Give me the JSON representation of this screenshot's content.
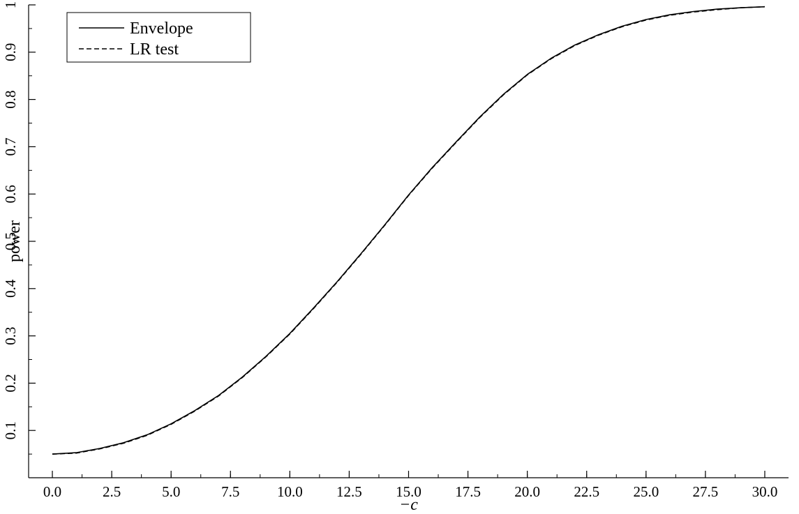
{
  "chart_data": {
    "type": "line",
    "title": "",
    "xlabel": "−c",
    "ylabel": "power",
    "xlim": [
      -1,
      31
    ],
    "ylim": [
      0,
      1
    ],
    "grid": false,
    "legend": "top-left",
    "x_ticks": [
      0.0,
      2.5,
      5.0,
      7.5,
      10.0,
      12.5,
      15.0,
      17.5,
      20.0,
      22.5,
      25.0,
      27.5,
      30.0
    ],
    "x_tick_labels": [
      "0.0",
      "2.5",
      "5.0",
      "7.5",
      "10.0",
      "12.5",
      "15.0",
      "17.5",
      "20.0",
      "22.5",
      "25.0",
      "27.5",
      "30.0"
    ],
    "y_ticks": [
      0.1,
      0.2,
      0.3,
      0.4,
      0.5,
      0.6,
      0.7,
      0.8,
      0.9,
      1.0
    ],
    "y_tick_labels": [
      "0.1",
      "0.2",
      "0.3",
      "0.4",
      "0.5",
      "0.6",
      "0.7",
      "0.8",
      "0.9",
      "1"
    ],
    "series": [
      {
        "name": "Envelope",
        "style": "solid",
        "color": "#000000",
        "x": [
          0,
          1,
          2,
          3,
          4,
          5,
          6,
          7,
          8,
          9,
          10,
          11,
          12,
          13,
          14,
          15,
          16,
          17,
          18,
          19,
          20,
          21,
          22,
          23,
          24,
          25,
          26,
          27,
          28,
          29,
          30
        ],
        "y": [
          0.05,
          0.053,
          0.062,
          0.074,
          0.091,
          0.114,
          0.142,
          0.174,
          0.213,
          0.257,
          0.305,
          0.359,
          0.415,
          0.474,
          0.535,
          0.598,
          0.656,
          0.71,
          0.763,
          0.811,
          0.853,
          0.887,
          0.915,
          0.937,
          0.955,
          0.969,
          0.979,
          0.986,
          0.991,
          0.994,
          0.996
        ]
      },
      {
        "name": "LR test",
        "style": "dashed",
        "color": "#000000",
        "x": [
          0,
          1,
          2,
          3,
          4,
          5,
          6,
          7,
          8,
          9,
          10,
          11,
          12,
          13,
          14,
          15,
          16,
          17,
          18,
          19,
          20,
          21,
          22,
          23,
          24,
          25,
          26,
          27,
          28,
          29,
          30
        ],
        "y": [
          0.05,
          0.052,
          0.061,
          0.073,
          0.09,
          0.113,
          0.141,
          0.173,
          0.212,
          0.256,
          0.304,
          0.358,
          0.414,
          0.473,
          0.534,
          0.597,
          0.655,
          0.709,
          0.762,
          0.81,
          0.852,
          0.886,
          0.914,
          0.936,
          0.954,
          0.968,
          0.978,
          0.985,
          0.99,
          0.994,
          0.996
        ]
      }
    ]
  }
}
